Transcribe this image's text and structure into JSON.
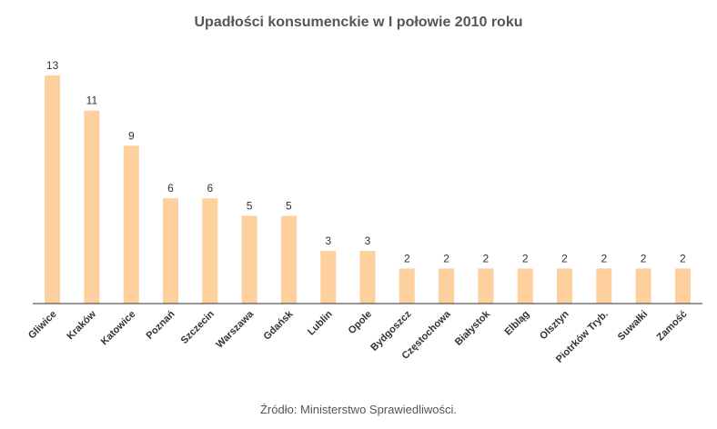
{
  "chart_data": {
    "type": "bar",
    "title": "Upadłości konsumenckie w I połowie 2010 roku",
    "categories": [
      "Gliwice",
      "Kraków",
      "Katowice",
      "Poznań",
      "Szczecin",
      "Warszawa",
      "Gdańsk",
      "Lublin",
      "Opole",
      "Bydgoszcz",
      "Częstochowa",
      "Białystok",
      "Elbląg",
      "Olsztyn",
      "Piotrków Tryb.",
      "Suwałki",
      "Zamość"
    ],
    "values": [
      13,
      11,
      9,
      6,
      6,
      5,
      5,
      3,
      3,
      2,
      2,
      2,
      2,
      2,
      2,
      2,
      2
    ],
    "xlabel": "",
    "ylabel": "",
    "ylim": [
      0,
      13
    ],
    "grid": false,
    "legend": "none",
    "bar_color": "#fdd09e",
    "axis_color": "#333333",
    "text_color": "#333333"
  },
  "source": "Źródło: Ministerstwo Sprawiedliwości."
}
